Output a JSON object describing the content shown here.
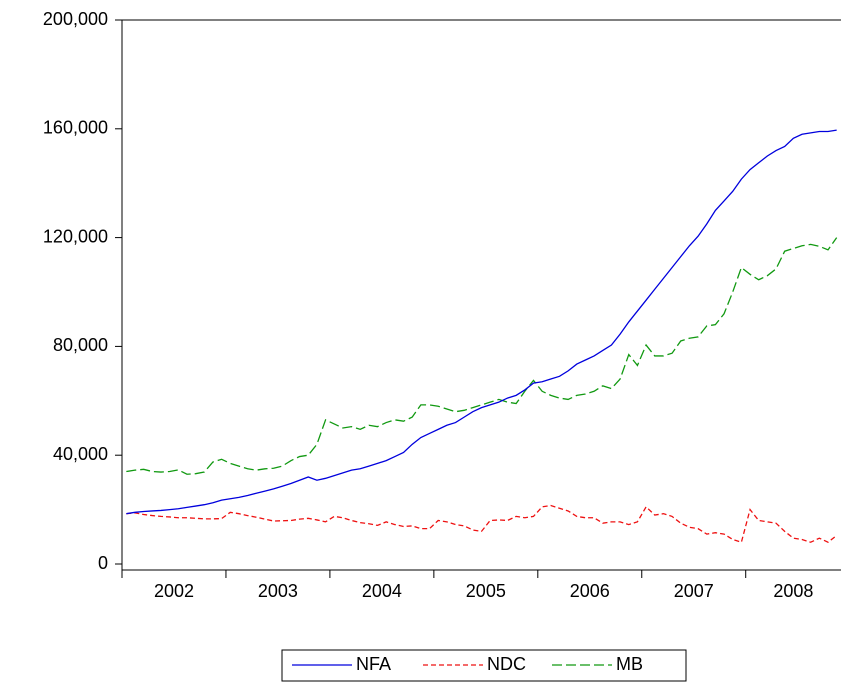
{
  "chart_data": {
    "type": "line",
    "categories": [
      "2002",
      null,
      null,
      null,
      null,
      null,
      null,
      null,
      null,
      null,
      null,
      null,
      "2003",
      null,
      null,
      null,
      null,
      null,
      null,
      null,
      null,
      null,
      null,
      null,
      "2004",
      null,
      null,
      null,
      null,
      null,
      null,
      null,
      null,
      null,
      null,
      null,
      "2005",
      null,
      null,
      null,
      null,
      null,
      null,
      null,
      null,
      null,
      null,
      null,
      "2006",
      null,
      null,
      null,
      null,
      null,
      null,
      null,
      null,
      null,
      null,
      null,
      "2007",
      null,
      null,
      null,
      null,
      null,
      null,
      null,
      null,
      null,
      null,
      null,
      "2008",
      null,
      null,
      null,
      null,
      null,
      null,
      null,
      null,
      null,
      null
    ],
    "ylim": [
      0,
      200000
    ],
    "yticks": [
      0,
      {
        "value": 40000,
        "label": "40,000"
      },
      {
        "value": 80000,
        "label": "80,000"
      },
      {
        "value": 120000,
        "label": "120,000"
      },
      {
        "value": 160000,
        "label": "160,000"
      },
      {
        "value": 200000,
        "label": "200,000"
      }
    ],
    "legend": "bottom",
    "series": [
      {
        "name": "NFA",
        "color": "#0000dd",
        "dash": "none",
        "values": [
          18500,
          19000,
          19300,
          19500,
          19700,
          20000,
          20300,
          20800,
          21300,
          21800,
          22500,
          23500,
          24000,
          24500,
          25200,
          26000,
          26800,
          27600,
          28600,
          29600,
          30800,
          32000,
          30800,
          31500,
          32500,
          33500,
          34500,
          35000,
          36000,
          37000,
          38000,
          39500,
          41000,
          44000,
          46500,
          48000,
          49500,
          51000,
          52000,
          54000,
          56000,
          57500,
          58500,
          59500,
          61000,
          62000,
          64000,
          66500,
          67000,
          68000,
          69000,
          71000,
          73500,
          75000,
          76500,
          78500,
          80500,
          84500,
          89000,
          93000,
          97000,
          101000,
          105000,
          109000,
          113000,
          117000,
          120500,
          125000,
          130000,
          133500,
          137000,
          141500,
          145000,
          147500,
          150000,
          152000,
          153500,
          156500,
          158000,
          158500,
          159000,
          159000,
          159500
        ]
      },
      {
        "name": "NDC",
        "color": "#ee1111",
        "dash": "5,3",
        "values": [
          18500,
          18800,
          18200,
          17800,
          17500,
          17300,
          17000,
          17000,
          16800,
          16600,
          16600,
          16700,
          19000,
          18500,
          17800,
          17200,
          16500,
          15800,
          15900,
          16000,
          16500,
          16800,
          16200,
          15500,
          17500,
          17000,
          16000,
          15200,
          14800,
          14200,
          15500,
          14500,
          13800,
          14000,
          13000,
          13000,
          16000,
          15500,
          14500,
          14000,
          12500,
          12000,
          16000,
          16200,
          16000,
          17500,
          17000,
          17500,
          21000,
          21500,
          20500,
          19500,
          17500,
          17000,
          17000,
          15000,
          15500,
          15500,
          14500,
          15500,
          21000,
          18000,
          18500,
          17500,
          15000,
          13500,
          13000,
          11000,
          11500,
          11000,
          9000,
          8000,
          20000,
          16000,
          15500,
          15000,
          12000,
          9500,
          9000,
          8000,
          9500,
          8000,
          10500
        ]
      },
      {
        "name": "MB",
        "color": "#119911",
        "dash": "10,4",
        "values": [
          34000,
          34500,
          34800,
          34000,
          33800,
          34000,
          34600,
          33000,
          33200,
          33800,
          37500,
          38500,
          37000,
          36000,
          35000,
          34500,
          35000,
          35200,
          36000,
          38000,
          39500,
          40000,
          44000,
          53000,
          51500,
          50000,
          50500,
          49500,
          51000,
          50500,
          52000,
          53000,
          52500,
          54000,
          58500,
          58500,
          58000,
          57000,
          56000,
          56500,
          57500,
          58500,
          59500,
          60500,
          59500,
          59000,
          63500,
          67500,
          63500,
          62000,
          61000,
          60500,
          62000,
          62500,
          63500,
          65500,
          64500,
          68000,
          77000,
          73000,
          80500,
          76500,
          76500,
          77500,
          82000,
          83000,
          83500,
          87500,
          88000,
          92000,
          100000,
          109000,
          106500,
          104500,
          106000,
          108500,
          115000,
          116000,
          117000,
          117500,
          116800,
          115500,
          120000
        ]
      }
    ]
  }
}
